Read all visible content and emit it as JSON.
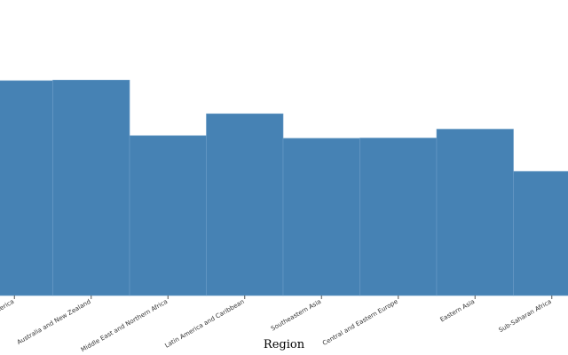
{
  "chart_data": {
    "type": "bar",
    "x_label": "Region",
    "categories": [
      "North America",
      "Australia and New Zealand",
      "Middle East and Northern Africa",
      "Latin America and Caribbean",
      "Southeastern Asia",
      "Central and Eastern Europe",
      "Eastern Asia",
      "Sub-Saharan Africa"
    ],
    "values": [
      7.27,
      7.29,
      5.41,
      6.15,
      5.32,
      5.33,
      5.63,
      4.2
    ],
    "color": "#4682b4",
    "ylim": [
      0,
      10
    ]
  }
}
